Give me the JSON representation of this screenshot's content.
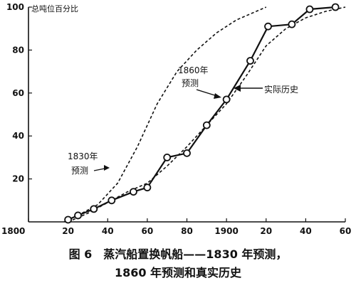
{
  "chart_data": {
    "type": "line",
    "ylabel": "总吨位百分比",
    "xlim": [
      1800,
      1960
    ],
    "ylim": [
      0,
      100
    ],
    "x_ticks": [
      {
        "value": 1800,
        "label": "1800"
      },
      {
        "value": 1820,
        "label": "20"
      },
      {
        "value": 1840,
        "label": "40"
      },
      {
        "value": 1860,
        "label": "60"
      },
      {
        "value": 1880,
        "label": "80"
      },
      {
        "value": 1900,
        "label": "1900"
      },
      {
        "value": 1920,
        "label": "20"
      },
      {
        "value": 1940,
        "label": "40"
      },
      {
        "value": 1960,
        "label": "60"
      }
    ],
    "y_ticks": [
      {
        "value": 20,
        "label": "20"
      },
      {
        "value": 40,
        "label": "40"
      },
      {
        "value": 60,
        "label": "60"
      },
      {
        "value": 80,
        "label": "80"
      },
      {
        "value": 100,
        "label": "100"
      }
    ],
    "series": [
      {
        "name": "实际历史",
        "style": "solid-markers",
        "points": [
          [
            1820,
            1
          ],
          [
            1825,
            3
          ],
          [
            1833,
            6
          ],
          [
            1842,
            10
          ],
          [
            1853,
            14
          ],
          [
            1860,
            16
          ],
          [
            1870,
            30
          ],
          [
            1880,
            32
          ],
          [
            1890,
            45
          ],
          [
            1900,
            57
          ],
          [
            1912,
            75
          ],
          [
            1921,
            91
          ],
          [
            1933,
            92
          ],
          [
            1942,
            99
          ],
          [
            1955,
            100
          ]
        ]
      },
      {
        "name": "1830年预测",
        "style": "dashed",
        "points": [
          [
            1818,
            0
          ],
          [
            1825,
            3
          ],
          [
            1835,
            8
          ],
          [
            1845,
            18
          ],
          [
            1855,
            35
          ],
          [
            1865,
            55
          ],
          [
            1875,
            70
          ],
          [
            1885,
            80
          ],
          [
            1895,
            88
          ],
          [
            1905,
            94
          ],
          [
            1915,
            98
          ],
          [
            1920,
            100
          ]
        ]
      },
      {
        "name": "1860年预测",
        "style": "dashed",
        "points": [
          [
            1820,
            0
          ],
          [
            1830,
            4
          ],
          [
            1840,
            9
          ],
          [
            1850,
            14
          ],
          [
            1860,
            18
          ],
          [
            1870,
            26
          ],
          [
            1880,
            35
          ],
          [
            1890,
            45
          ],
          [
            1900,
            55
          ],
          [
            1910,
            68
          ],
          [
            1920,
            82
          ],
          [
            1930,
            90
          ],
          [
            1940,
            95
          ],
          [
            1950,
            98
          ],
          [
            1960,
            100
          ]
        ]
      }
    ],
    "annotations": {
      "forecast_1830": [
        "1830年",
        "预测"
      ],
      "forecast_1860": [
        "1860年",
        "预测"
      ],
      "actual": "实际历史"
    },
    "caption": {
      "line1": "图 6　蒸汽船置换帆船——1830 年预测，",
      "line2": "1860 年预测和真实历史"
    }
  }
}
